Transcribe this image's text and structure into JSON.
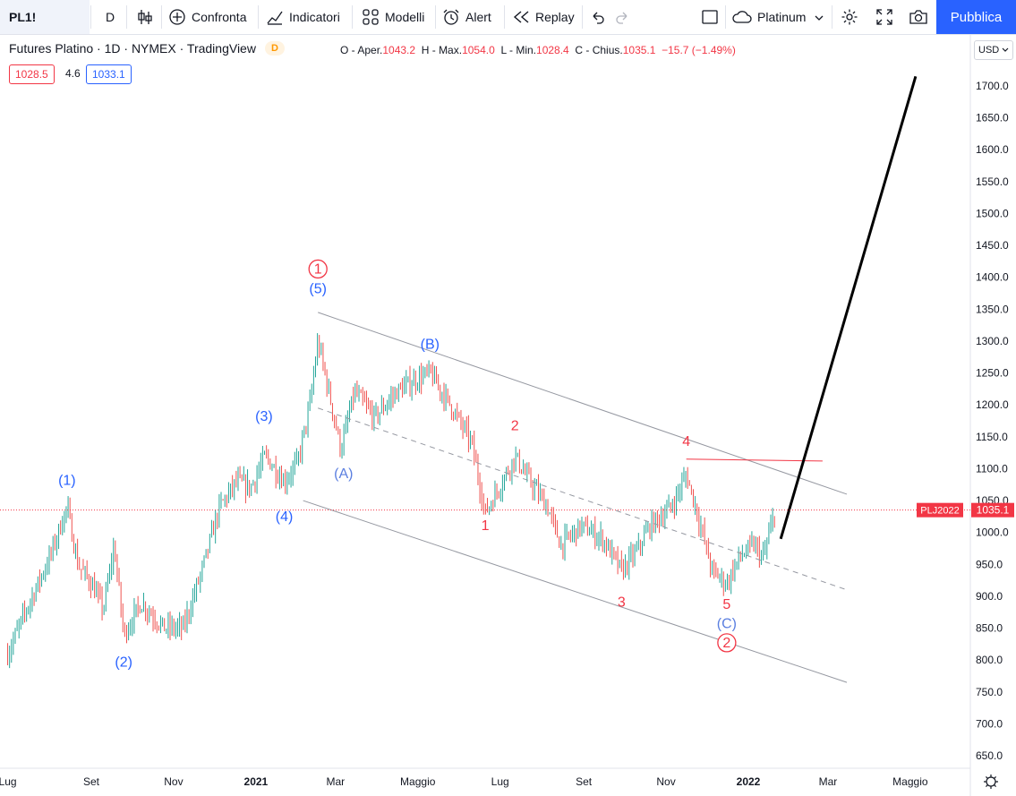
{
  "toolbar": {
    "symbol": "PL1!",
    "interval": "D",
    "compare": "Confronta",
    "indicators": "Indicatori",
    "templates": "Modelli",
    "alert": "Alert",
    "replay": "Replay",
    "layout_name": "Platinum",
    "publish": "Pubblica"
  },
  "legend": {
    "title": "Futures Platino · 1D · NYMEX · TradingView",
    "badge": "D",
    "open_label": "O - Aper.",
    "open": "1043.2",
    "high_label": "H - Max.",
    "high": "1054.0",
    "low_label": "L - Min.",
    "low": "1028.4",
    "close_label": "C - Chius.",
    "close": "1035.1",
    "change": "−15.7 (−1.49%)",
    "bid": "1028.5",
    "spread": "4.6",
    "ask": "1033.1"
  },
  "currency": "USD",
  "price_tag": {
    "symbol": "PLJ2022",
    "value": "1035.1"
  },
  "colors": {
    "up": "#26a69a",
    "down": "#ef5350",
    "blue_wave": "#2962ff",
    "red_wave": "#f23645",
    "accent": "#2962ff"
  },
  "chart_data": {
    "type": "candlestick",
    "title": "Futures Platino · 1D · NYMEX · TradingView",
    "x_ticks": [
      "Lug",
      "Set",
      "Nov",
      "2021",
      "Mar",
      "Maggio",
      "Lug",
      "Set",
      "Nov",
      "2022",
      "Mar",
      "Maggio"
    ],
    "y_ticks": [
      650,
      700,
      750,
      800,
      850,
      900,
      950,
      1000,
      1050,
      1100,
      1150,
      1200,
      1250,
      1300,
      1350,
      1400,
      1450,
      1500,
      1550,
      1600,
      1650,
      1700
    ],
    "ylim": [
      630,
      1730
    ],
    "last_price": 1035.1,
    "price_path": [
      {
        "date": "2020-07-01",
        "price": 810
      },
      {
        "date": "2020-07-15",
        "price": 880
      },
      {
        "date": "2020-08-01",
        "price": 960
      },
      {
        "date": "2020-08-14",
        "price": 1040
      },
      {
        "date": "2020-08-22",
        "price": 950
      },
      {
        "date": "2020-09-01",
        "price": 920
      },
      {
        "date": "2020-09-10",
        "price": 880
      },
      {
        "date": "2020-09-18",
        "price": 980
      },
      {
        "date": "2020-09-25",
        "price": 840
      },
      {
        "date": "2020-10-08",
        "price": 890
      },
      {
        "date": "2020-10-25",
        "price": 850
      },
      {
        "date": "2020-11-08",
        "price": 850
      },
      {
        "date": "2020-11-22",
        "price": 940
      },
      {
        "date": "2020-12-05",
        "price": 1040
      },
      {
        "date": "2020-12-18",
        "price": 1080
      },
      {
        "date": "2020-12-28",
        "price": 1070
      },
      {
        "date": "2021-01-08",
        "price": 1120
      },
      {
        "date": "2021-01-22",
        "price": 1080
      },
      {
        "date": "2021-02-01",
        "price": 1110
      },
      {
        "date": "2021-02-10",
        "price": 1200
      },
      {
        "date": "2021-02-16",
        "price": 1300
      },
      {
        "date": "2021-02-26",
        "price": 1200
      },
      {
        "date": "2021-03-05",
        "price": 1130
      },
      {
        "date": "2021-03-15",
        "price": 1220
      },
      {
        "date": "2021-03-30",
        "price": 1180
      },
      {
        "date": "2021-04-15",
        "price": 1220
      },
      {
        "date": "2021-04-30",
        "price": 1240
      },
      {
        "date": "2021-05-10",
        "price": 1250
      },
      {
        "date": "2021-05-25",
        "price": 1200
      },
      {
        "date": "2021-06-10",
        "price": 1140
      },
      {
        "date": "2021-06-20",
        "price": 1030
      },
      {
        "date": "2021-07-05",
        "price": 1090
      },
      {
        "date": "2021-07-12",
        "price": 1120
      },
      {
        "date": "2021-07-20",
        "price": 1090
      },
      {
        "date": "2021-08-05",
        "price": 1040
      },
      {
        "date": "2021-08-15",
        "price": 980
      },
      {
        "date": "2021-08-30",
        "price": 1010
      },
      {
        "date": "2021-09-15",
        "price": 990
      },
      {
        "date": "2021-09-29",
        "price": 940
      },
      {
        "date": "2021-10-10",
        "price": 970
      },
      {
        "date": "2021-10-20",
        "price": 1010
      },
      {
        "date": "2021-11-05",
        "price": 1040
      },
      {
        "date": "2021-11-16",
        "price": 1090
      },
      {
        "date": "2021-11-23",
        "price": 1040
      },
      {
        "date": "2021-12-05",
        "price": 940
      },
      {
        "date": "2021-12-16",
        "price": 920
      },
      {
        "date": "2021-12-25",
        "price": 960
      },
      {
        "date": "2022-01-05",
        "price": 980
      },
      {
        "date": "2022-01-12",
        "price": 960
      },
      {
        "date": "2022-01-21",
        "price": 1035
      }
    ],
    "wave_labels": [
      {
        "text": "(1)",
        "date": "2020-08-14",
        "price": 1075,
        "color": "blue"
      },
      {
        "text": "(2)",
        "date": "2020-09-25",
        "price": 790,
        "color": "blue"
      },
      {
        "text": "(3)",
        "date": "2021-01-07",
        "price": 1175,
        "color": "blue"
      },
      {
        "text": "(4)",
        "date": "2021-01-22",
        "price": 1018,
        "color": "blue"
      },
      {
        "text": "(5)",
        "date": "2021-02-16",
        "price": 1375,
        "color": "blue"
      },
      {
        "text": "1",
        "date": "2021-02-16",
        "price": 1406,
        "color": "red",
        "circled": true
      },
      {
        "text": "(A)",
        "date": "2021-03-07",
        "price": 1085,
        "color": "blue_light"
      },
      {
        "text": "(B)",
        "date": "2021-05-10",
        "price": 1288,
        "color": "blue"
      },
      {
        "text": "1",
        "date": "2021-06-20",
        "price": 1004,
        "color": "red"
      },
      {
        "text": "2",
        "date": "2021-07-12",
        "price": 1160,
        "color": "red"
      },
      {
        "text": "3",
        "date": "2021-09-29",
        "price": 884,
        "color": "red"
      },
      {
        "text": "4",
        "date": "2021-11-16",
        "price": 1136,
        "color": "red"
      },
      {
        "text": "5",
        "date": "2021-12-16",
        "price": 880,
        "color": "red"
      },
      {
        "text": "(C)",
        "date": "2021-12-16",
        "price": 850,
        "color": "blue_light"
      },
      {
        "text": "2",
        "date": "2021-12-16",
        "price": 820,
        "color": "red",
        "circled": true
      }
    ],
    "lines": [
      {
        "kind": "channel_upper",
        "from": {
          "date": "2021-02-16",
          "price": 1345
        },
        "to": {
          "date": "2022-03-15",
          "price": 1060
        }
      },
      {
        "kind": "channel_mid",
        "from": {
          "date": "2021-02-16",
          "price": 1195
        },
        "to": {
          "date": "2022-03-15",
          "price": 910
        }
      },
      {
        "kind": "channel_lower",
        "from": {
          "date": "2021-02-05",
          "price": 1050
        },
        "to": {
          "date": "2022-03-15",
          "price": 765
        }
      },
      {
        "kind": "resistance",
        "from": {
          "date": "2021-11-16",
          "price": 1115
        },
        "to": {
          "date": "2022-02-25",
          "price": 1112
        }
      },
      {
        "kind": "projection",
        "from": {
          "date": "2022-01-25",
          "price": 990
        },
        "to": {
          "date": "2022-05-05",
          "price": 1715
        }
      }
    ]
  }
}
